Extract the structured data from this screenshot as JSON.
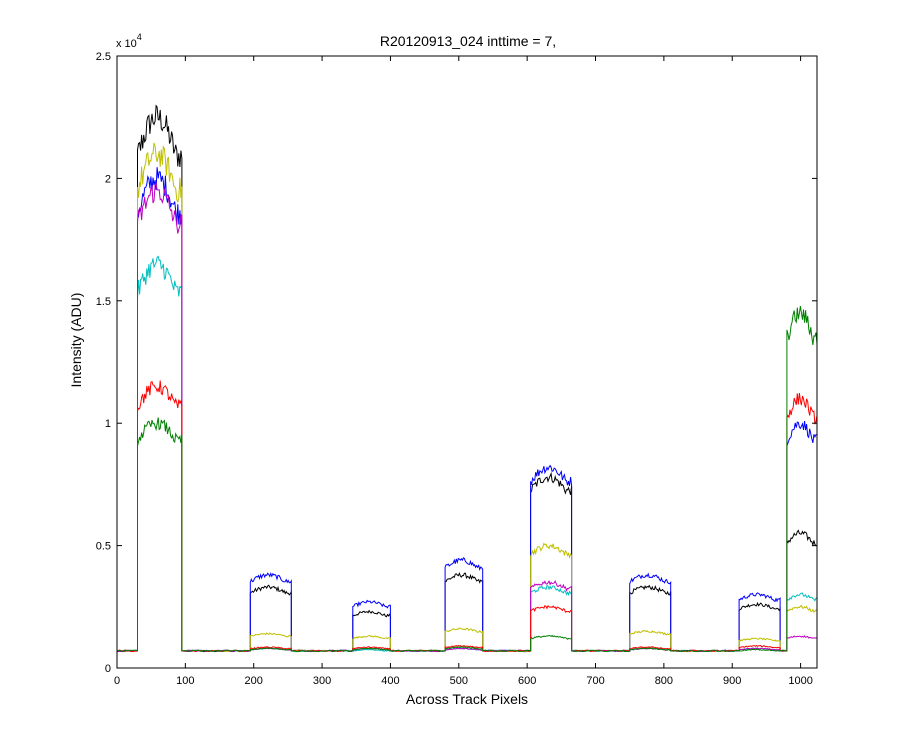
{
  "chart_data": {
    "type": "line",
    "title": "R20120913_024 inttime = 7,",
    "xlabel": "Across Track Pixels",
    "ylabel": "Intensity (ADU)",
    "y_exponent_label": "x 10",
    "y_exponent": "4",
    "xlim": [
      0,
      1024
    ],
    "ylim": [
      0,
      25000
    ],
    "x_ticks": [
      0,
      100,
      200,
      300,
      400,
      500,
      600,
      700,
      800,
      900,
      1000
    ],
    "y_ticks": [
      0,
      5000,
      10000,
      15000,
      20000,
      25000
    ],
    "y_tick_labels": [
      "0",
      "0.5",
      "1",
      "1.5",
      "2",
      "2.5"
    ],
    "grid": false,
    "baseline": 700,
    "blocks": [
      {
        "start": 30,
        "end": 95
      },
      {
        "start": 195,
        "end": 255
      },
      {
        "start": 345,
        "end": 400
      },
      {
        "start": 480,
        "end": 535
      },
      {
        "start": 605,
        "end": 665
      },
      {
        "start": 750,
        "end": 810
      },
      {
        "start": 910,
        "end": 970
      },
      {
        "start": 980,
        "end": 1024
      }
    ],
    "series": [
      {
        "color": "#000000",
        "levels": [
          22500,
          3300,
          2300,
          3800,
          7800,
          3300,
          2600,
          5500
        ]
      },
      {
        "color": "#0000ff",
        "levels": [
          20000,
          3800,
          2700,
          4400,
          8200,
          3800,
          3000,
          10000
        ]
      },
      {
        "color": "#bfbf00",
        "levels": [
          21000,
          1400,
          1300,
          1600,
          5000,
          1500,
          1200,
          2500
        ]
      },
      {
        "color": "#00bfbf",
        "levels": [
          16500,
          800,
          750,
          800,
          3300,
          800,
          800,
          3000
        ]
      },
      {
        "color": "#bf00bf",
        "levels": [
          19500,
          800,
          800,
          800,
          3500,
          800,
          800,
          1300
        ]
      },
      {
        "color": "#ff0000",
        "levels": [
          11500,
          850,
          850,
          900,
          2500,
          850,
          900,
          11000
        ]
      },
      {
        "color": "#008000",
        "levels": [
          10000,
          800,
          800,
          850,
          1300,
          800,
          750,
          14500
        ]
      }
    ]
  }
}
